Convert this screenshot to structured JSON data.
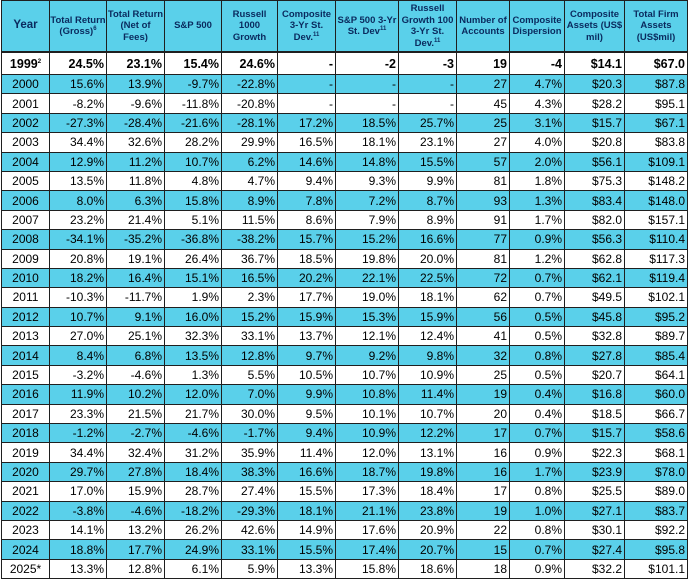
{
  "headers": [
    {
      "label": "Year",
      "sup": ""
    },
    {
      "label": "Total Return (Gross)",
      "sup": "6"
    },
    {
      "label": "Total Return (Net of Fees)",
      "sup": ""
    },
    {
      "label": "S&P 500",
      "sup": ""
    },
    {
      "label": "Russell 1000 Growth",
      "sup": ""
    },
    {
      "label": "Composite 3-Yr St. Dev.",
      "sup": "11"
    },
    {
      "label": "S&P 500 3-Yr St. Dev",
      "sup": "11"
    },
    {
      "label": "Russell Growth 100 3-Yr St. Dev.",
      "sup": "11"
    },
    {
      "label": "Number of Accounts",
      "sup": ""
    },
    {
      "label": "Composite Dispersion",
      "sup": ""
    },
    {
      "label": "Composite Assets (US$ mil)",
      "sup": ""
    },
    {
      "label": "Total Firm Assets (US$mil)",
      "sup": ""
    }
  ],
  "rows": [
    {
      "year": "1999",
      "year_sup": "2",
      "cells": [
        "24.5%",
        "23.1%",
        "15.4%",
        "24.6%",
        "-",
        "-2",
        "-3",
        "19",
        "-4",
        "$14.1",
        "$67.0"
      ]
    },
    {
      "year": "2000",
      "year_sup": "",
      "cells": [
        "15.6%",
        "13.9%",
        "-9.7%",
        "-22.8%",
        "-",
        "-",
        "-",
        "27",
        "4.7%",
        "$20.3",
        "$87.8"
      ]
    },
    {
      "year": "2001",
      "year_sup": "",
      "cells": [
        "-8.2%",
        "-9.6%",
        "-11.8%",
        "-20.8%",
        "-",
        "-",
        "-",
        "45",
        "4.3%",
        "$28.2",
        "$95.1"
      ]
    },
    {
      "year": "2002",
      "year_sup": "",
      "cells": [
        "-27.3%",
        "-28.4%",
        "-21.6%",
        "-28.1%",
        "17.2%",
        "18.5%",
        "25.7%",
        "25",
        "3.1%",
        "$15.7",
        "$67.1"
      ]
    },
    {
      "year": "2003",
      "year_sup": "",
      "cells": [
        "34.4%",
        "32.6%",
        "28.2%",
        "29.9%",
        "16.5%",
        "18.1%",
        "23.1%",
        "27",
        "4.0%",
        "$20.8",
        "$83.8"
      ]
    },
    {
      "year": "2004",
      "year_sup": "",
      "cells": [
        "12.9%",
        "11.2%",
        "10.7%",
        "6.2%",
        "14.6%",
        "14.8%",
        "15.5%",
        "57",
        "2.0%",
        "$56.1",
        "$109.1"
      ]
    },
    {
      "year": "2005",
      "year_sup": "",
      "cells": [
        "13.5%",
        "11.8%",
        "4.8%",
        "4.7%",
        "9.4%",
        "9.3%",
        "9.9%",
        "81",
        "1.8%",
        "$75.3",
        "$148.2"
      ]
    },
    {
      "year": "2006",
      "year_sup": "",
      "cells": [
        "8.0%",
        "6.3%",
        "15.8%",
        "8.9%",
        "7.8%",
        "7.2%",
        "8.7%",
        "93",
        "1.3%",
        "$83.4",
        "$148.0"
      ]
    },
    {
      "year": "2007",
      "year_sup": "",
      "cells": [
        "23.2%",
        "21.4%",
        "5.1%",
        "11.5%",
        "8.6%",
        "7.9%",
        "8.9%",
        "91",
        "1.7%",
        "$82.0",
        "$157.1"
      ]
    },
    {
      "year": "2008",
      "year_sup": "",
      "cells": [
        "-34.1%",
        "-35.2%",
        "-36.8%",
        "-38.2%",
        "15.7%",
        "15.2%",
        "16.6%",
        "77",
        "0.9%",
        "$56.3",
        "$110.4"
      ]
    },
    {
      "year": "2009",
      "year_sup": "",
      "cells": [
        "20.8%",
        "19.1%",
        "26.4%",
        "36.7%",
        "18.5%",
        "19.8%",
        "20.0%",
        "81",
        "1.2%",
        "$62.8",
        "$117.3"
      ]
    },
    {
      "year": "2010",
      "year_sup": "",
      "cells": [
        "18.2%",
        "16.4%",
        "15.1%",
        "16.5%",
        "20.2%",
        "22.1%",
        "22.5%",
        "72",
        "0.7%",
        "$62.1",
        "$119.4"
      ]
    },
    {
      "year": "2011",
      "year_sup": "",
      "cells": [
        "-10.3%",
        "-11.7%",
        "1.9%",
        "2.3%",
        "17.7%",
        "19.0%",
        "18.1%",
        "62",
        "0.7%",
        "$49.5",
        "$102.1"
      ]
    },
    {
      "year": "2012",
      "year_sup": "",
      "cells": [
        "10.7%",
        "9.1%",
        "16.0%",
        "15.2%",
        "15.9%",
        "15.3%",
        "15.9%",
        "56",
        "0.5%",
        "$45.8",
        "$95.2"
      ]
    },
    {
      "year": "2013",
      "year_sup": "",
      "cells": [
        "27.0%",
        "25.1%",
        "32.3%",
        "33.1%",
        "13.7%",
        "12.1%",
        "12.4%",
        "41",
        "0.5%",
        "$32.8",
        "$89.7"
      ]
    },
    {
      "year": "2014",
      "year_sup": "",
      "cells": [
        "8.4%",
        "6.8%",
        "13.5%",
        "12.8%",
        "9.7%",
        "9.2%",
        "9.8%",
        "32",
        "0.8%",
        "$27.8",
        "$85.4"
      ]
    },
    {
      "year": "2015",
      "year_sup": "",
      "cells": [
        "-3.2%",
        "-4.6%",
        "1.3%",
        "5.5%",
        "10.5%",
        "10.7%",
        "10.9%",
        "25",
        "0.5%",
        "$20.7",
        "$64.1"
      ]
    },
    {
      "year": "2016",
      "year_sup": "",
      "cells": [
        "11.9%",
        "10.2%",
        "12.0%",
        "7.0%",
        "9.9%",
        "10.8%",
        "11.4%",
        "19",
        "0.4%",
        "$16.8",
        "$60.0"
      ]
    },
    {
      "year": "2017",
      "year_sup": "",
      "cells": [
        "23.3%",
        "21.5%",
        "21.7%",
        "30.0%",
        "9.5%",
        "10.1%",
        "10.7%",
        "20",
        "0.4%",
        "$18.5",
        "$66.7"
      ]
    },
    {
      "year": "2018",
      "year_sup": "",
      "cells": [
        "-1.2%",
        "-2.7%",
        "-4.6%",
        "-1.7%",
        "9.4%",
        "10.9%",
        "12.2%",
        "17",
        "0.7%",
        "$15.7",
        "$58.6"
      ]
    },
    {
      "year": "2019",
      "year_sup": "",
      "cells": [
        "34.4%",
        "32.4%",
        "31.2%",
        "35.9%",
        "11.4%",
        "12.0%",
        "13.1%",
        "16",
        "0.9%",
        "$22.3",
        "$68.1"
      ]
    },
    {
      "year": "2020",
      "year_sup": "",
      "cells": [
        "29.7%",
        "27.8%",
        "18.4%",
        "38.3%",
        "16.6%",
        "18.7%",
        "19.8%",
        "16",
        "1.7%",
        "$23.9",
        "$78.0"
      ]
    },
    {
      "year": "2021",
      "year_sup": "",
      "cells": [
        "17.0%",
        "15.9%",
        "28.7%",
        "27.4%",
        "15.5%",
        "17.3%",
        "18.4%",
        "17",
        "0.8%",
        "$25.5",
        "$89.0"
      ]
    },
    {
      "year": "2022",
      "year_sup": "",
      "cells": [
        "-3.8%",
        "-4.6%",
        "-18.2%",
        "-29.3%",
        "18.1%",
        "21.1%",
        "23.8%",
        "19",
        "1.0%",
        "$27.1",
        "$83.7"
      ]
    },
    {
      "year": "2023",
      "year_sup": "",
      "cells": [
        "14.1%",
        "13.2%",
        "26.2%",
        "42.6%",
        "14.9%",
        "17.6%",
        "20.9%",
        "22",
        "0.8%",
        "$30.1",
        "$92.2"
      ]
    },
    {
      "year": "2024",
      "year_sup": "",
      "cells": [
        "18.8%",
        "17.7%",
        "24.9%",
        "33.1%",
        "15.5%",
        "17.4%",
        "20.7%",
        "15",
        "0.7%",
        "$27.4",
        "$95.8"
      ]
    },
    {
      "year": "2025*",
      "year_sup": "",
      "cells": [
        "13.3%",
        "12.8%",
        "6.1%",
        "5.9%",
        "13.3%",
        "15.8%",
        "18.6%",
        "18",
        "0.9%",
        "$32.2",
        "$101.1"
      ]
    }
  ],
  "colors": {
    "header_bg": "#5ad0ea",
    "header_text": "#0a2a5e",
    "row_alt_bg": "#5ad0ea",
    "row_bg": "#ffffff",
    "border": "#1f1f1f"
  }
}
